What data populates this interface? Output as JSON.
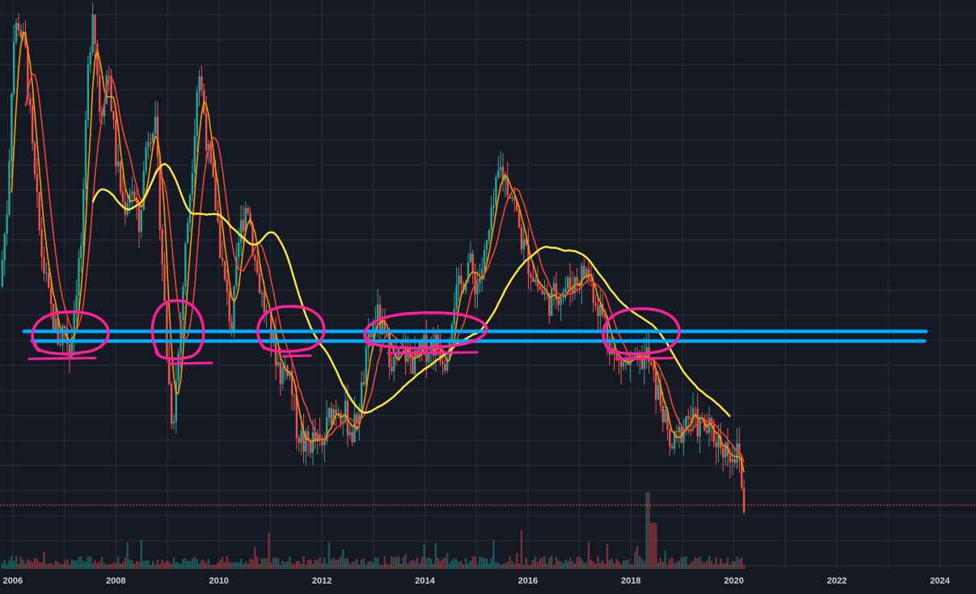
{
  "chart_data": {
    "type": "candlestick",
    "title": "",
    "xlabel": "",
    "ylabel": "",
    "x_ticks": [
      "2006",
      "2008",
      "2010",
      "2012",
      "2014",
      "2016",
      "2018",
      "2020",
      "2022",
      "2024"
    ],
    "xlim": [
      2005.75,
      2024.7
    ],
    "y_scale_labels": "not shown",
    "grid": true,
    "legend": "none",
    "colors": {
      "background": "#151924",
      "grid": "#2a2e39",
      "up_candle": "#26a69a",
      "down_candle": "#ef5350",
      "ma_fast": "#ff9800",
      "ma_mid": "#f44336",
      "ma_slow": "#ffeb3b",
      "support_lines": "#03a9f4",
      "annotation_circles": "#ff1e9c",
      "last_price_line": "#ef5350"
    },
    "price_path": [
      [
        2005.75,
        0.45
      ],
      [
        2005.9,
        0.62
      ],
      [
        2006.0,
        0.92
      ],
      [
        2006.1,
        0.97
      ],
      [
        2006.25,
        0.9
      ],
      [
        2006.4,
        0.68
      ],
      [
        2006.55,
        0.52
      ],
      [
        2006.7,
        0.42
      ],
      [
        2006.9,
        0.34
      ],
      [
        2007.0,
        0.38
      ],
      [
        2007.1,
        0.32
      ],
      [
        2007.25,
        0.47
      ],
      [
        2007.35,
        0.55
      ],
      [
        2007.45,
        0.85
      ],
      [
        2007.55,
        1.0
      ],
      [
        2007.7,
        0.78
      ],
      [
        2007.85,
        0.88
      ],
      [
        2008.0,
        0.7
      ],
      [
        2008.15,
        0.6
      ],
      [
        2008.3,
        0.65
      ],
      [
        2008.45,
        0.56
      ],
      [
        2008.6,
        0.74
      ],
      [
        2008.75,
        0.78
      ],
      [
        2008.85,
        0.6
      ],
      [
        2009.0,
        0.3
      ],
      [
        2009.1,
        0.18
      ],
      [
        2009.2,
        0.3
      ],
      [
        2009.35,
        0.52
      ],
      [
        2009.5,
        0.72
      ],
      [
        2009.6,
        0.88
      ],
      [
        2009.7,
        0.8
      ],
      [
        2009.8,
        0.7
      ],
      [
        2009.95,
        0.6
      ],
      [
        2010.1,
        0.46
      ],
      [
        2010.25,
        0.37
      ],
      [
        2010.4,
        0.55
      ],
      [
        2010.55,
        0.62
      ],
      [
        2010.7,
        0.5
      ],
      [
        2010.85,
        0.42
      ],
      [
        2011.0,
        0.36
      ],
      [
        2011.2,
        0.28
      ],
      [
        2011.35,
        0.3
      ],
      [
        2011.5,
        0.18
      ],
      [
        2011.65,
        0.14
      ],
      [
        2011.85,
        0.15
      ],
      [
        2012.0,
        0.13
      ],
      [
        2012.15,
        0.2
      ],
      [
        2012.3,
        0.22
      ],
      [
        2012.45,
        0.2
      ],
      [
        2012.6,
        0.16
      ],
      [
        2012.75,
        0.23
      ],
      [
        2012.9,
        0.33
      ],
      [
        2013.05,
        0.4
      ],
      [
        2013.2,
        0.35
      ],
      [
        2013.4,
        0.3
      ],
      [
        2013.6,
        0.32
      ],
      [
        2013.8,
        0.3
      ],
      [
        2014.0,
        0.33
      ],
      [
        2014.2,
        0.34
      ],
      [
        2014.4,
        0.31
      ],
      [
        2014.55,
        0.42
      ],
      [
        2014.7,
        0.45
      ],
      [
        2014.85,
        0.5
      ],
      [
        2015.0,
        0.45
      ],
      [
        2015.15,
        0.5
      ],
      [
        2015.3,
        0.58
      ],
      [
        2015.45,
        0.68
      ],
      [
        2015.55,
        0.66
      ],
      [
        2015.7,
        0.63
      ],
      [
        2015.85,
        0.55
      ],
      [
        2016.0,
        0.5
      ],
      [
        2016.2,
        0.45
      ],
      [
        2016.4,
        0.42
      ],
      [
        2016.6,
        0.44
      ],
      [
        2016.8,
        0.45
      ],
      [
        2017.0,
        0.47
      ],
      [
        2017.15,
        0.48
      ],
      [
        2017.3,
        0.43
      ],
      [
        2017.5,
        0.38
      ],
      [
        2017.7,
        0.3
      ],
      [
        2017.9,
        0.3
      ],
      [
        2018.1,
        0.29
      ],
      [
        2018.3,
        0.32
      ],
      [
        2018.45,
        0.26
      ],
      [
        2018.6,
        0.22
      ],
      [
        2018.75,
        0.13
      ],
      [
        2018.9,
        0.15
      ],
      [
        2019.1,
        0.2
      ],
      [
        2019.3,
        0.18
      ],
      [
        2019.5,
        0.17
      ],
      [
        2019.7,
        0.15
      ],
      [
        2019.9,
        0.13
      ],
      [
        2020.1,
        0.12
      ],
      [
        2020.2,
        0.0
      ]
    ]
  }
}
